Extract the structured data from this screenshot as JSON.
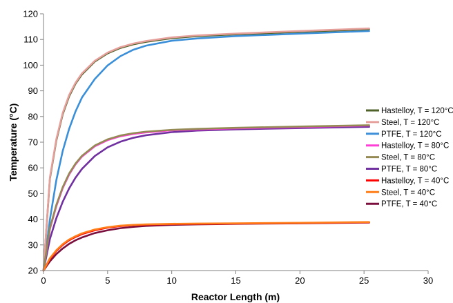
{
  "chart_data": {
    "type": "line",
    "title": "",
    "xlabel": "Reactor Length (m)",
    "ylabel": "Temperature (°C)",
    "xlim": [
      0,
      30
    ],
    "ylim": [
      20,
      120
    ],
    "xticks": [
      0,
      5,
      10,
      15,
      20,
      25,
      30
    ],
    "yticks": [
      20,
      30,
      40,
      50,
      60,
      70,
      80,
      90,
      100,
      110,
      120
    ],
    "grid": false,
    "legend_position": "right",
    "x": [
      0,
      0.5,
      1,
      1.5,
      2,
      2.5,
      3,
      4,
      5,
      6,
      7,
      8,
      10,
      12,
      15,
      20,
      25.4
    ],
    "series": [
      {
        "name": "Hastelloy, T = 120°C",
        "color": "#4f6228",
        "values": [
          20,
          55.8,
          70.7,
          80.9,
          87.9,
          92.8,
          96.4,
          101.4,
          104.6,
          106.7,
          108.1,
          109.1,
          110.5,
          111.3,
          112.0,
          113.0,
          114.0
        ]
      },
      {
        "name": "Steel, T = 120°C",
        "color": "#e6a09c",
        "values": [
          20,
          56.3,
          71.2,
          81.4,
          88.4,
          93.2,
          96.8,
          101.7,
          104.9,
          107.0,
          108.4,
          109.4,
          110.8,
          111.6,
          112.3,
          113.3,
          114.3
        ]
      },
      {
        "name": "PTFE, T = 120°C",
        "color": "#3a8fd8",
        "values": [
          20,
          39.9,
          55.2,
          66.6,
          75.2,
          82.0,
          87.4,
          94.6,
          99.9,
          103.5,
          106.0,
          107.6,
          109.5,
          110.4,
          111.3,
          112.3,
          113.3
        ]
      },
      {
        "name": "Hastelloy, T = 80°C",
        "color": "#ff3fd6",
        "values": [
          20,
          36.2,
          45.1,
          52.1,
          57.4,
          61.4,
          64.4,
          68.4,
          70.8,
          72.3,
          73.2,
          73.8,
          74.6,
          75.0,
          75.4,
          75.9,
          76.5
        ]
      },
      {
        "name": "Steel, T = 80°C",
        "color": "#948a54",
        "values": [
          20,
          36.6,
          45.6,
          52.5,
          57.8,
          61.7,
          64.7,
          68.7,
          71.1,
          72.6,
          73.5,
          74.1,
          74.8,
          75.2,
          75.6,
          76.1,
          76.6
        ]
      },
      {
        "name": "PTFE, T = 80°C",
        "color": "#7030a0",
        "values": [
          20,
          32.3,
          40.4,
          46.8,
          52.0,
          56.2,
          59.6,
          64.6,
          68.0,
          70.2,
          71.7,
          72.7,
          73.9,
          74.5,
          75.0,
          75.5,
          76.0
        ]
      },
      {
        "name": "Hastelloy, T = 40°C",
        "color": "#ff0000",
        "values": [
          20,
          24.5,
          27.6,
          30.0,
          31.8,
          33.1,
          34.2,
          35.7,
          36.7,
          37.3,
          37.7,
          37.9,
          38.1,
          38.2,
          38.3,
          38.5,
          38.8
        ]
      },
      {
        "name": "Steel, T = 40°C",
        "color": "#ff7f1a",
        "values": [
          20,
          24.8,
          27.9,
          30.3,
          32.1,
          33.4,
          34.5,
          36.0,
          36.9,
          37.5,
          37.8,
          38.0,
          38.2,
          38.3,
          38.4,
          38.6,
          38.9
        ]
      },
      {
        "name": "PTFE, T = 40°C",
        "color": "#7a0f3d",
        "values": [
          20,
          23.6,
          26.4,
          28.6,
          30.4,
          31.8,
          32.9,
          34.6,
          35.7,
          36.5,
          37.0,
          37.4,
          37.8,
          38.0,
          38.2,
          38.4,
          38.7
        ]
      }
    ]
  }
}
